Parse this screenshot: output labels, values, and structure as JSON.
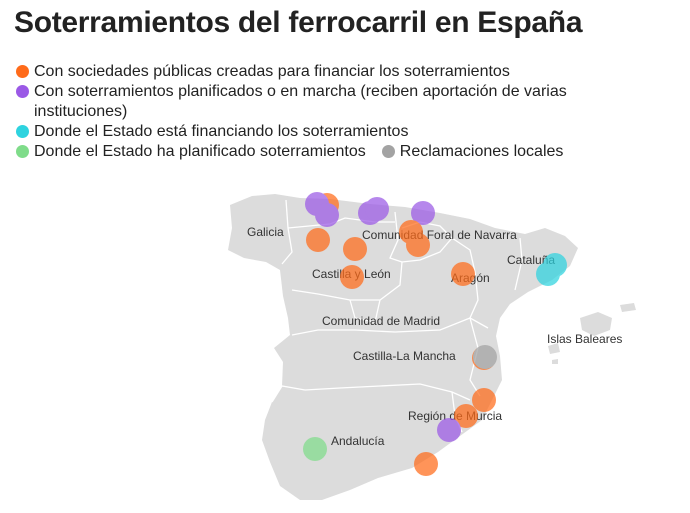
{
  "title": "Soterramientos del ferrocarril en España",
  "colors": {
    "public_company": "#ff6b1a",
    "planned_multi": "#9b59e6",
    "state_financing": "#2ed3df",
    "state_planned": "#7fdc8a",
    "local_claims": "#a3a3a3",
    "land": "#dcdcdc",
    "borders": "#ffffff"
  },
  "legend": [
    {
      "key": "public_company",
      "label": "Con sociedades públicas creadas para financiar los soterramientos"
    },
    {
      "key": "planned_multi",
      "label": "Con soterramientos planificados o en marcha (reciben aportación de varias instituciones)"
    },
    {
      "key": "state_financing",
      "label": "Donde el Estado está financiando los soterramientos"
    },
    {
      "key": "state_planned",
      "label": "Donde el Estado ha planificado soterramientos"
    },
    {
      "key": "local_claims",
      "label": "Reclamaciones locales"
    }
  ],
  "map": {
    "region_labels": [
      {
        "id": "galicia",
        "text": "Galicia"
      },
      {
        "id": "navarra",
        "text": "Comunidad Foral de Navarra"
      },
      {
        "id": "cataluna",
        "text": "Cataluña"
      },
      {
        "id": "castilla-leon",
        "text": "Castilla y León"
      },
      {
        "id": "aragon",
        "text": "Aragón"
      },
      {
        "id": "madrid",
        "text": "Comunidad de Madrid"
      },
      {
        "id": "baleares",
        "text": "Islas Baleares"
      },
      {
        "id": "castilla-mancha",
        "text": "Castilla-La Mancha"
      },
      {
        "id": "murcia",
        "text": "Región de Murcia"
      },
      {
        "id": "andalucia",
        "text": "Andalucía"
      }
    ]
  }
}
